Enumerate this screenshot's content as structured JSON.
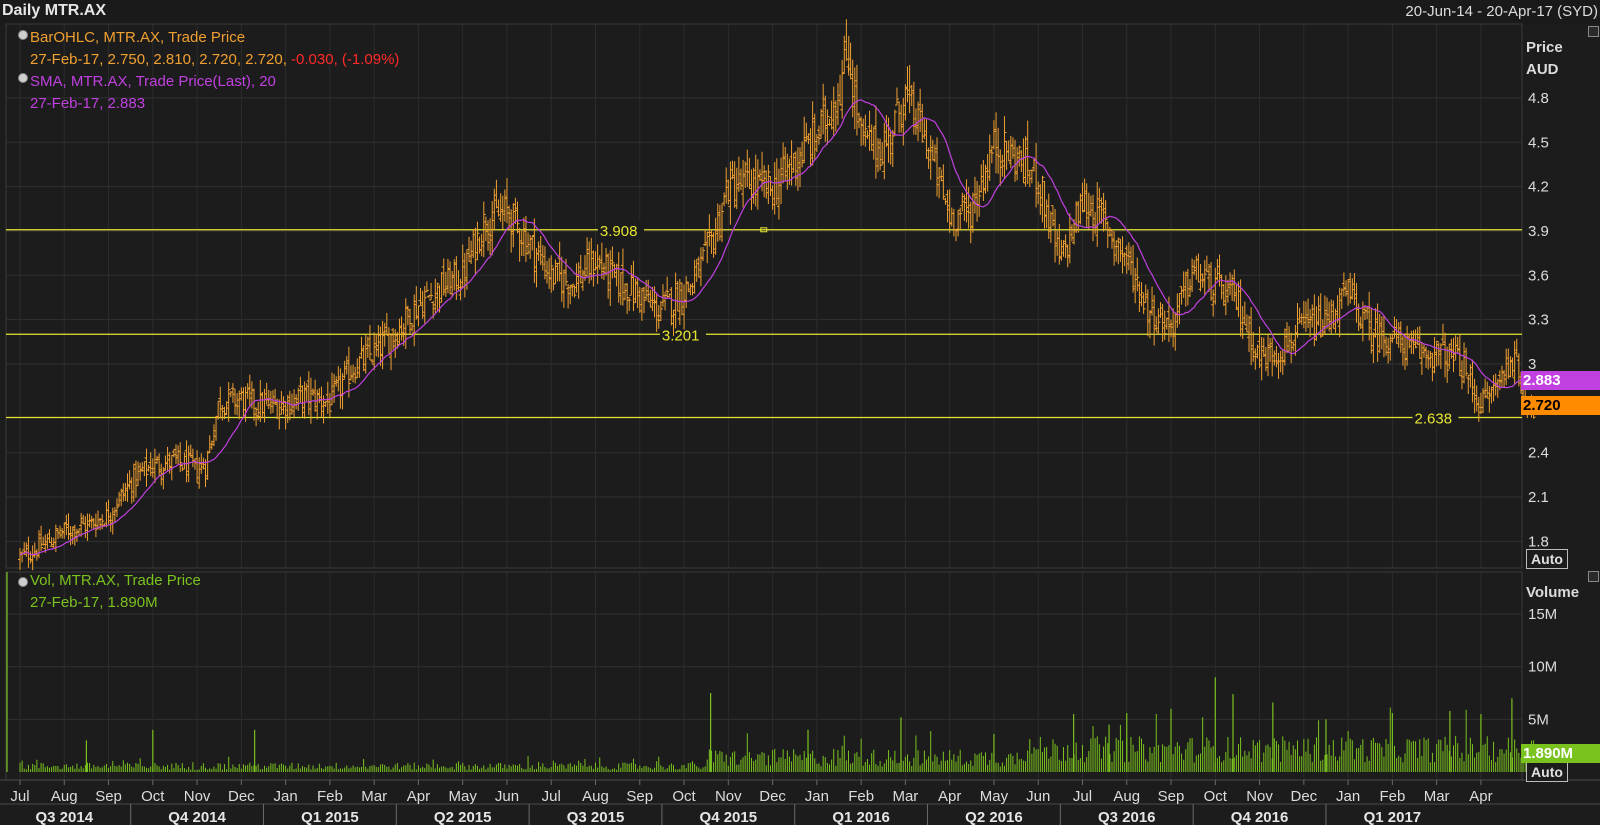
{
  "header": {
    "title": "Daily MTR.AX",
    "date_range": "20-Jun-14 - 20-Apr-17 (SYD)"
  },
  "legend": {
    "ohlc_title": "BarOHLC, MTR.AX, Trade Price",
    "ohlc_values": "27-Feb-17, 2.750, 2.810, 2.720, 2.720,",
    "ohlc_change": "-0.030, (-1.09%)",
    "sma_title": "SMA, MTR.AX, Trade Price(Last),  20",
    "sma_values": "27-Feb-17, 2.883",
    "vol_title": "Vol, MTR.AX, Trade Price",
    "vol_values": "27-Feb-17, 1.890M"
  },
  "price_axis": {
    "title_line1": "Price",
    "title_line2": "AUD",
    "auto_label": "Auto"
  },
  "volume_axis": {
    "title": "Volume",
    "auto_label": "Auto"
  },
  "tags": {
    "sma": "2.883",
    "last": "2.720",
    "volume": "1.890M"
  },
  "colors": {
    "background": "#1c1c1c",
    "ohlc_bars": "#f0a030",
    "sma_line": "#c040e0",
    "volume_bars": "#7ac21e",
    "horizontal_lines": "#e6e632",
    "change_negative": "#ff2a2a",
    "tag_sma": "#c040e0",
    "tag_last": "#ff8c00",
    "tag_volume": "#7ac21e"
  },
  "chart_data": [
    {
      "type": "ohlc",
      "ylabel": "Price AUD",
      "ylim": [
        1.62,
        5.3
      ],
      "y_ticks": [
        {
          "v": 1.8,
          "label": "1.8"
        },
        {
          "v": 2.1,
          "label": "2.1"
        },
        {
          "v": 2.4,
          "label": "2.4"
        },
        {
          "v": 3.0,
          "label": "3"
        },
        {
          "v": 3.3,
          "label": "3.3"
        },
        {
          "v": 3.6,
          "label": "3.6"
        },
        {
          "v": 3.9,
          "label": "3.9"
        },
        {
          "v": 4.2,
          "label": "4.2"
        },
        {
          "v": 4.5,
          "label": "4.5"
        },
        {
          "v": 4.8,
          "label": "4.8"
        }
      ],
      "x_range_months": [
        0,
        34.8
      ],
      "month_labels": [
        "Jul",
        "Aug",
        "Sep",
        "Oct",
        "Nov",
        "Dec",
        "Jan",
        "Feb",
        "Mar",
        "Apr",
        "May",
        "Jun",
        "Jul",
        "Aug",
        "Sep",
        "Oct",
        "Nov",
        "Dec",
        "Jan",
        "Feb",
        "Mar",
        "Apr",
        "May",
        "Jun",
        "Jul",
        "Aug",
        "Sep",
        "Oct",
        "Nov",
        "Dec",
        "Jan",
        "Feb",
        "Mar",
        "Apr"
      ],
      "quarter_labels": [
        "Q3 2014",
        "Q4 2014",
        "Q1 2015",
        "Q2 2015",
        "Q3 2015",
        "Q4 2015",
        "Q1 2016",
        "Q2 2016",
        "Q3 2016",
        "Q4 2016",
        "Q1 2017"
      ],
      "close_anchors": [
        [
          0.0,
          1.69
        ],
        [
          0.5,
          1.77
        ],
        [
          1.0,
          1.87
        ],
        [
          1.6,
          1.92
        ],
        [
          2.0,
          1.98
        ],
        [
          2.5,
          2.2
        ],
        [
          3.0,
          2.32
        ],
        [
          3.5,
          2.34
        ],
        [
          4.0,
          2.29
        ],
        [
          4.2,
          2.32
        ],
        [
          4.5,
          2.75
        ],
        [
          5.0,
          2.76
        ],
        [
          5.5,
          2.72
        ],
        [
          6.0,
          2.73
        ],
        [
          6.5,
          2.78
        ],
        [
          7.0,
          2.74
        ],
        [
          7.5,
          2.97
        ],
        [
          8.0,
          3.08
        ],
        [
          8.5,
          3.22
        ],
        [
          9.0,
          3.4
        ],
        [
          9.5,
          3.52
        ],
        [
          10.0,
          3.6
        ],
        [
          10.5,
          3.97
        ],
        [
          11.0,
          4.03
        ],
        [
          11.5,
          3.82
        ],
        [
          12.0,
          3.6
        ],
        [
          12.5,
          3.55
        ],
        [
          13.0,
          3.7
        ],
        [
          13.5,
          3.56
        ],
        [
          14.0,
          3.47
        ],
        [
          14.4,
          3.36
        ],
        [
          14.8,
          3.44
        ],
        [
          15.2,
          3.55
        ],
        [
          15.6,
          3.8
        ],
        [
          16.0,
          4.2
        ],
        [
          16.5,
          4.22
        ],
        [
          17.0,
          4.18
        ],
        [
          17.5,
          4.38
        ],
        [
          18.0,
          4.55
        ],
        [
          18.5,
          4.85
        ],
        [
          18.7,
          5.12
        ],
        [
          19.0,
          4.52
        ],
        [
          19.5,
          4.45
        ],
        [
          20.0,
          4.82
        ],
        [
          20.5,
          4.48
        ],
        [
          21.0,
          4.0
        ],
        [
          21.5,
          4.05
        ],
        [
          22.0,
          4.48
        ],
        [
          22.5,
          4.4
        ],
        [
          23.0,
          4.25
        ],
        [
          23.5,
          3.68
        ],
        [
          24.0,
          4.1
        ],
        [
          24.5,
          3.96
        ],
        [
          25.0,
          3.7
        ],
        [
          25.5,
          3.37
        ],
        [
          26.0,
          3.25
        ],
        [
          26.5,
          3.63
        ],
        [
          27.0,
          3.52
        ],
        [
          27.5,
          3.42
        ],
        [
          28.0,
          3.04
        ],
        [
          28.5,
          3.1
        ],
        [
          29.0,
          3.25
        ],
        [
          29.5,
          3.28
        ],
        [
          30.0,
          3.48
        ],
        [
          30.5,
          3.22
        ],
        [
          31.0,
          3.18
        ],
        [
          31.5,
          3.08
        ],
        [
          32.0,
          3.07
        ],
        [
          32.5,
          3.03
        ],
        [
          33.0,
          2.72
        ],
        [
          33.4,
          2.88
        ],
        [
          33.7,
          3.06
        ],
        [
          34.0,
          2.8
        ],
        [
          34.2,
          2.72
        ]
      ],
      "sma_period": 20,
      "horizontal_lines": [
        {
          "value": 3.908,
          "label": "3.908",
          "label_month": 13.1
        },
        {
          "value": 3.201,
          "label": "3.201",
          "label_month": 14.5
        },
        {
          "value": 2.638,
          "label": "2.638",
          "label_month": 31.5
        }
      ],
      "last_bar": {
        "date": "27-Feb-17",
        "open": 2.75,
        "high": 2.81,
        "low": 2.72,
        "close": 2.72
      }
    },
    {
      "type": "bar",
      "ylabel": "Volume",
      "ylim": [
        0,
        19000000
      ],
      "y_ticks": [
        {
          "v": 5000000,
          "label": "5M"
        },
        {
          "v": 10000000,
          "label": "10M"
        },
        {
          "v": 15000000,
          "label": "15M"
        }
      ],
      "volume_regimes": [
        [
          0,
          15.5,
          200000,
          900000
        ],
        [
          15.5,
          22.5,
          500000,
          2200000
        ],
        [
          22.5,
          34.2,
          900000,
          3400000
        ]
      ],
      "volume_spikes": [
        [
          0.0,
          19000000
        ],
        [
          1.5,
          3000000
        ],
        [
          3.0,
          4000000
        ],
        [
          5.3,
          4000000
        ],
        [
          15.6,
          7500000
        ],
        [
          17.8,
          4000000
        ],
        [
          19.9,
          5200000
        ],
        [
          22.0,
          3600000
        ],
        [
          23.8,
          5500000
        ],
        [
          24.6,
          4500000
        ],
        [
          25.0,
          5600000
        ],
        [
          26.0,
          6000000
        ],
        [
          27.0,
          9000000
        ],
        [
          27.4,
          7400000
        ],
        [
          28.3,
          6600000
        ],
        [
          29.5,
          5000000
        ],
        [
          31.0,
          5600000
        ],
        [
          32.3,
          5800000
        ],
        [
          33.0,
          5500000
        ],
        [
          33.7,
          7000000
        ]
      ],
      "last_volume": 1890000
    }
  ]
}
